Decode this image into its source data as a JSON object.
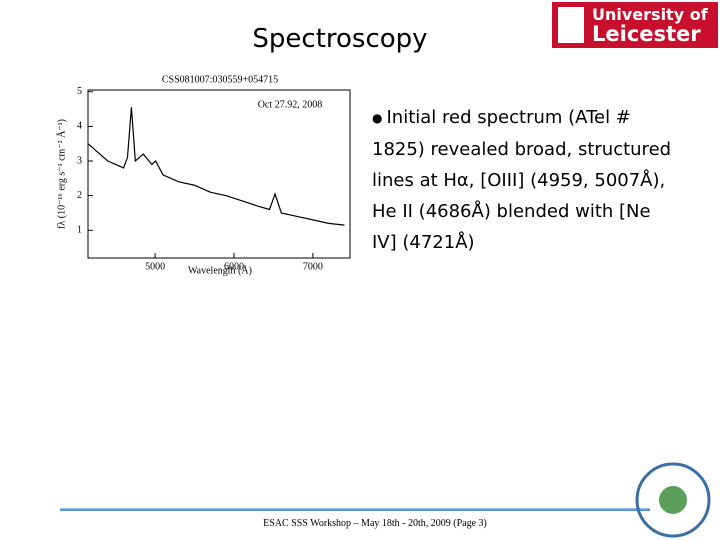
{
  "header": {
    "title": "Spectroscopy",
    "logo_line1": "University of",
    "logo_line2": "Leicester"
  },
  "chart_data": {
    "type": "line",
    "title": "CSS081007:030559+054715",
    "annotation": "Oct 27.92, 2008",
    "x_label": "Wavelength (Å)",
    "y_label": "fλ (10⁻¹⁶ erg s⁻¹ cm⁻² Å⁻¹)",
    "x": [
      4150,
      4300,
      4400,
      4500,
      4600,
      4650,
      4700,
      4750,
      4850,
      4960,
      5007,
      5100,
      5300,
      5500,
      5700,
      5900,
      6100,
      6300,
      6450,
      6520,
      6600,
      6800,
      7000,
      7200,
      7400
    ],
    "values": [
      3.5,
      3.2,
      3.0,
      2.9,
      2.8,
      3.1,
      4.55,
      3.0,
      3.2,
      2.9,
      3.0,
      2.6,
      2.4,
      2.3,
      2.1,
      2.0,
      1.85,
      1.7,
      1.6,
      2.05,
      1.5,
      1.4,
      1.3,
      1.2,
      1.15
    ],
    "color": "#000000",
    "xlim": [
      4150,
      7470
    ],
    "ylim": [
      0.2,
      5.05
    ],
    "xticks": [
      5000,
      6000,
      7000
    ],
    "yticks": [
      1,
      2,
      3,
      4,
      5
    ]
  },
  "bullet": "Initial red spectrum (ATel # 1825) revealed broad, structured lines at Hα, [OIII] (4959, 5007Å), He II (4686Å) blended with [Ne IV] (4721Å)",
  "footer": "ESAC SSS Workshop – May 18th - 20th, 2009 (Page 3)"
}
